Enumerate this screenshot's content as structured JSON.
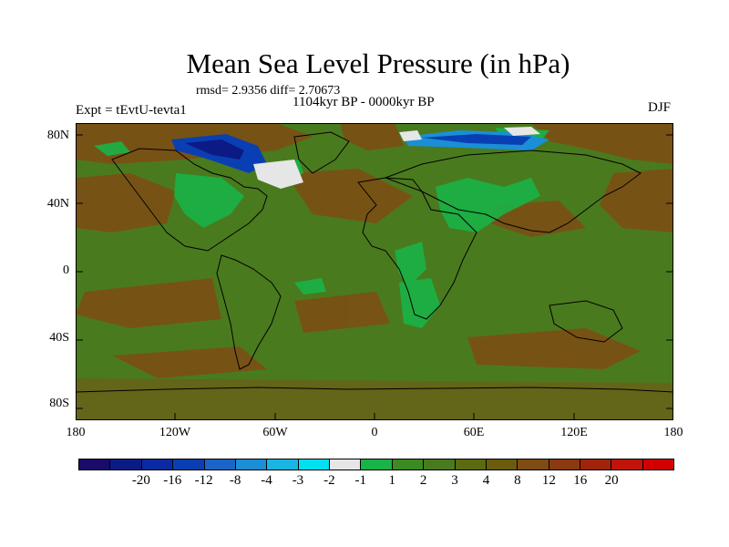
{
  "title": "Mean Sea Level Pressure (in hPa)",
  "stats": "rmsd= 2.9356 diff= 2.70673",
  "period": "1104kyr BP - 0000kyr BP",
  "experiment": "Expt = tEvtU-tevta1",
  "season": "DJF",
  "colors": {
    "background_field": "#4a7a1e",
    "high_pressure": "#8b4c1a",
    "low_positive": "#19b347",
    "very_low": "#0a3a9c",
    "near_zero": "#e8e8e8"
  },
  "axes": {
    "y_ticks": [
      "80N",
      "40N",
      "0",
      "40S",
      "80S"
    ],
    "x_ticks": [
      "180",
      "120W",
      "60W",
      "0",
      "60E",
      "120E",
      "180"
    ]
  },
  "colorbar": {
    "colors": [
      "#1a0a6b",
      "#0c1a86",
      "#0a2aa3",
      "#0a3fb3",
      "#1a66c8",
      "#1a8fd6",
      "#19b5e3",
      "#00e0f0",
      "#e6e6e6",
      "#19b347",
      "#3b8a22",
      "#4a7a1e",
      "#5a6b10",
      "#6a5c0b",
      "#7f4c14",
      "#8b3a0f",
      "#a1240a",
      "#c0140a",
      "#d00000"
    ],
    "labels": [
      "-20",
      "-16",
      "-12",
      "-8",
      "-4",
      "-3",
      "-2",
      "-1",
      "1",
      "2",
      "3",
      "4",
      "8",
      "12",
      "16",
      "20"
    ]
  }
}
